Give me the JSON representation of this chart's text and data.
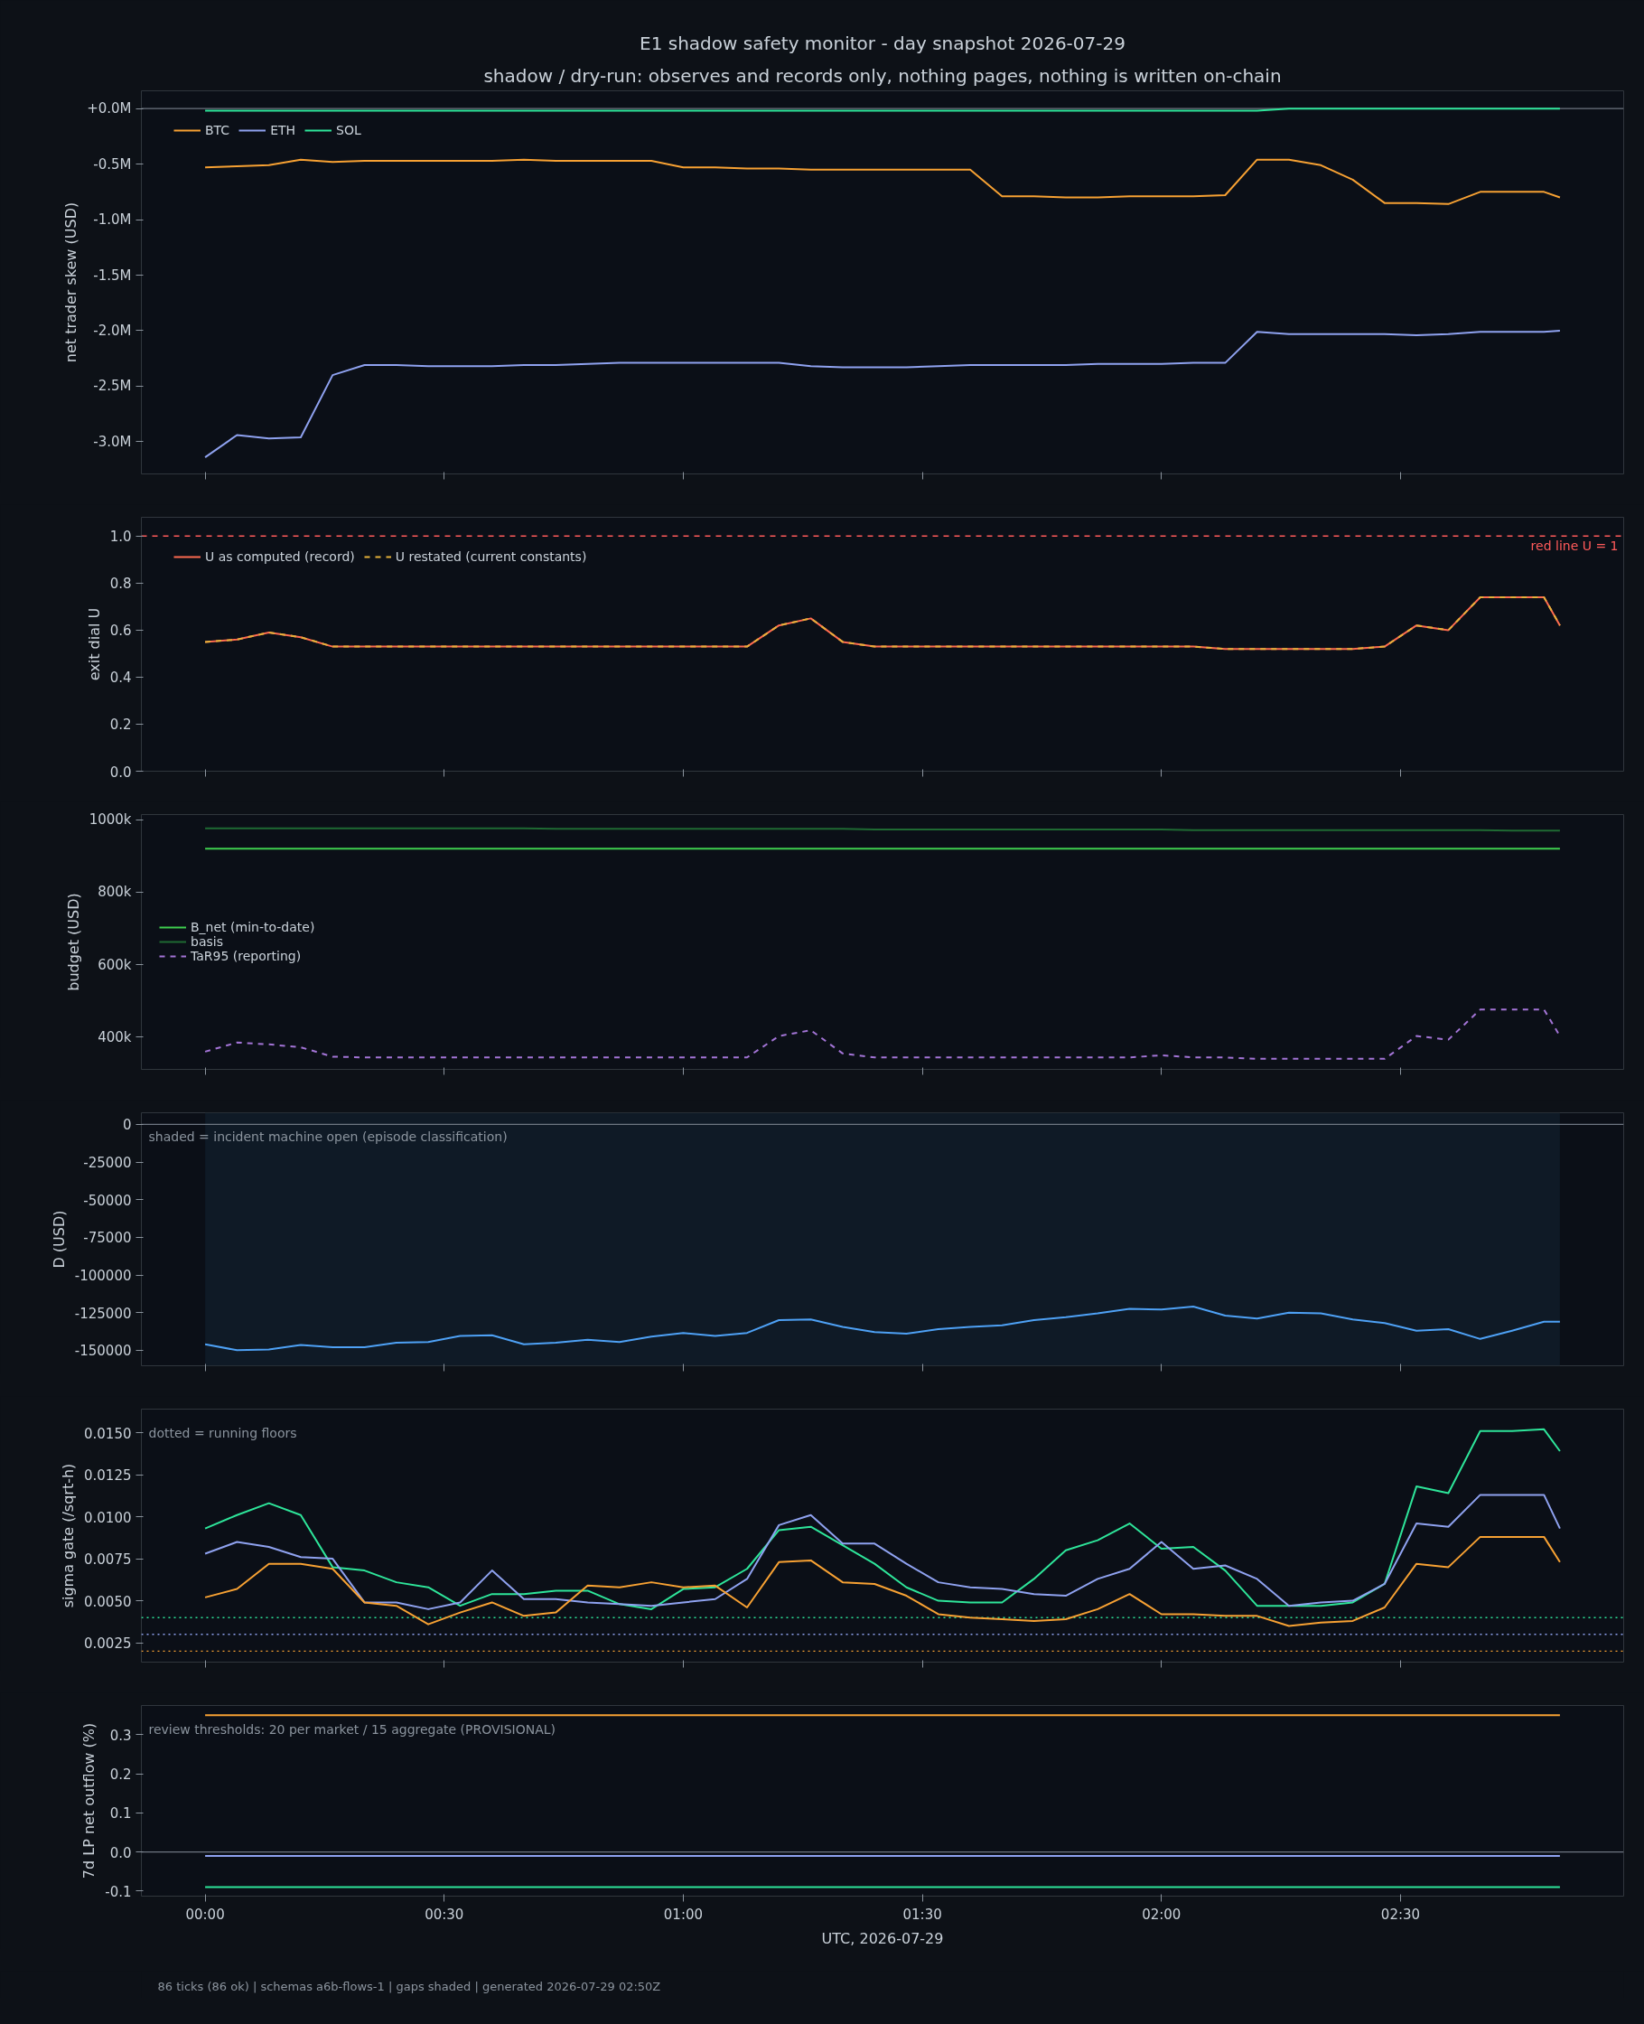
{
  "chart_data": [
    {
      "type": "line",
      "title": "E1 shadow safety monitor - day snapshot 2026-07-29",
      "subtitle": "shadow / dry-run: observes and records only, nothing pages, nothing is written on-chain",
      "ylabel": "net trader skew (USD)",
      "legend": "top left",
      "tick_labels": "y",
      "x": [
        "2026-07-29T00:00",
        "2026-07-29T00:04",
        "2026-07-29T00:08",
        "2026-07-29T00:12",
        "2026-07-29T00:16",
        "2026-07-29T00:20",
        "2026-07-29T00:24",
        "2026-07-29T00:28",
        "2026-07-29T00:32",
        "2026-07-29T00:36",
        "2026-07-29T00:40",
        "2026-07-29T00:44",
        "2026-07-29T00:48",
        "2026-07-29T00:52",
        "2026-07-29T00:56",
        "2026-07-29T01:00",
        "2026-07-29T01:04",
        "2026-07-29T01:08",
        "2026-07-29T01:12",
        "2026-07-29T01:16",
        "2026-07-29T01:20",
        "2026-07-29T01:24",
        "2026-07-29T01:28",
        "2026-07-29T01:32",
        "2026-07-29T01:36",
        "2026-07-29T01:40",
        "2026-07-29T01:44",
        "2026-07-29T01:48",
        "2026-07-29T01:52",
        "2026-07-29T01:56",
        "2026-07-29T02:00",
        "2026-07-29T02:04",
        "2026-07-29T02:08",
        "2026-07-29T02:12",
        "2026-07-29T02:16",
        "2026-07-29T02:20",
        "2026-07-29T02:24",
        "2026-07-29T02:28",
        "2026-07-29T02:32",
        "2026-07-29T02:36",
        "2026-07-29T02:40",
        "2026-07-29T02:44",
        "2026-07-29T02:48",
        "2026-07-29T02:50"
      ],
      "xlim": [
        "2026-07-28T23:52",
        "2026-07-29T02:58"
      ],
      "xticks": [
        {
          "value": "2026-07-29T00:00",
          "label": null
        },
        {
          "value": "2026-07-29T00:30",
          "label": null
        },
        {
          "value": "2026-07-29T01:00",
          "label": null
        },
        {
          "value": "2026-07-29T01:30",
          "label": null
        },
        {
          "value": "2026-07-29T02:00",
          "label": null
        },
        {
          "value": "2026-07-29T02:30",
          "label": null
        }
      ],
      "ylim": [
        -3290000,
        160000
      ],
      "yticks": [
        {
          "value": -3000000,
          "label": "-3.0M"
        },
        {
          "value": -2500000,
          "label": "-2.5M"
        },
        {
          "value": -2000000,
          "label": "-2.0M"
        },
        {
          "value": -1500000,
          "label": "-1.5M"
        },
        {
          "value": -1000000,
          "label": "-1.0M"
        },
        {
          "value": -500000,
          "label": "-0.5M"
        },
        {
          "value": 0,
          "label": "+0.0M"
        }
      ],
      "ref_lines": [
        {
          "axis": "y",
          "value": 0,
          "color": "#6e7681",
          "line_style": "solid"
        }
      ],
      "series": [
        {
          "name": "BTC",
          "color": "#f7a133",
          "values": [
            -530000,
            -520000,
            -510000,
            -460000,
            -480000,
            -470000,
            -470000,
            -470000,
            -470000,
            -470000,
            -460000,
            -470000,
            -470000,
            -470000,
            -470000,
            -530000,
            -530000,
            -540000,
            -540000,
            -550000,
            -550000,
            -550000,
            -550000,
            -550000,
            -550000,
            -790000,
            -790000,
            -800000,
            -800000,
            -790000,
            -790000,
            -790000,
            -780000,
            -460000,
            -460000,
            -510000,
            -640000,
            -850000,
            -850000,
            -860000,
            -750000,
            -750000,
            -750000,
            -800000
          ]
        },
        {
          "name": "ETH",
          "color": "#8fa2f0",
          "values": [
            -3140000,
            -2940000,
            -2970000,
            -2960000,
            -2400000,
            -2310000,
            -2310000,
            -2320000,
            -2320000,
            -2320000,
            -2310000,
            -2310000,
            -2300000,
            -2290000,
            -2290000,
            -2290000,
            -2290000,
            -2290000,
            -2290000,
            -2320000,
            -2330000,
            -2330000,
            -2330000,
            -2320000,
            -2310000,
            -2310000,
            -2310000,
            -2310000,
            -2300000,
            -2300000,
            -2300000,
            -2290000,
            -2290000,
            -2010000,
            -2030000,
            -2030000,
            -2030000,
            -2030000,
            -2040000,
            -2030000,
            -2010000,
            -2010000,
            -2010000,
            -2000000
          ]
        },
        {
          "name": "SOL",
          "color": "#2ee59a",
          "values": [
            -20000,
            -20000,
            -20000,
            -20000,
            -20000,
            -20000,
            -20000,
            -20000,
            -20000,
            -20000,
            -20000,
            -20000,
            -20000,
            -20000,
            -20000,
            -20000,
            -20000,
            -20000,
            -20000,
            -20000,
            -20000,
            -20000,
            -20000,
            -20000,
            -20000,
            -20000,
            -20000,
            -20000,
            -20000,
            -20000,
            -20000,
            -20000,
            -20000,
            -20000,
            0,
            0,
            0,
            0,
            0,
            0,
            0,
            0,
            0,
            0
          ]
        }
      ]
    },
    {
      "type": "line",
      "ylabel": "exit dial U",
      "legend": "top left",
      "tick_labels": "y",
      "x": [
        "2026-07-29T00:00",
        "2026-07-29T00:04",
        "2026-07-29T00:08",
        "2026-07-29T00:12",
        "2026-07-29T00:16",
        "2026-07-29T00:20",
        "2026-07-29T00:24",
        "2026-07-29T00:28",
        "2026-07-29T00:32",
        "2026-07-29T00:36",
        "2026-07-29T00:40",
        "2026-07-29T00:44",
        "2026-07-29T00:48",
        "2026-07-29T00:52",
        "2026-07-29T00:56",
        "2026-07-29T01:00",
        "2026-07-29T01:04",
        "2026-07-29T01:08",
        "2026-07-29T01:12",
        "2026-07-29T01:16",
        "2026-07-29T01:20",
        "2026-07-29T01:24",
        "2026-07-29T01:28",
        "2026-07-29T01:32",
        "2026-07-29T01:36",
        "2026-07-29T01:40",
        "2026-07-29T01:44",
        "2026-07-29T01:48",
        "2026-07-29T01:52",
        "2026-07-29T01:56",
        "2026-07-29T02:00",
        "2026-07-29T02:04",
        "2026-07-29T02:08",
        "2026-07-29T02:12",
        "2026-07-29T02:16",
        "2026-07-29T02:20",
        "2026-07-29T02:24",
        "2026-07-29T02:28",
        "2026-07-29T02:32",
        "2026-07-29T02:36",
        "2026-07-29T02:40",
        "2026-07-29T02:44",
        "2026-07-29T02:48",
        "2026-07-29T02:50"
      ],
      "xlim": [
        "2026-07-28T23:52",
        "2026-07-29T02:58"
      ],
      "xticks": [
        {
          "value": "2026-07-29T00:00",
          "label": null
        },
        {
          "value": "2026-07-29T00:30",
          "label": null
        },
        {
          "value": "2026-07-29T01:00",
          "label": null
        },
        {
          "value": "2026-07-29T01:30",
          "label": null
        },
        {
          "value": "2026-07-29T02:00",
          "label": null
        },
        {
          "value": "2026-07-29T02:30",
          "label": null
        }
      ],
      "ylim": [
        0,
        1.08
      ],
      "yticks": [
        {
          "value": 0,
          "label": "0.0"
        },
        0.2,
        0.4,
        0.6,
        0.8,
        {
          "value": 1,
          "label": "1.0"
        }
      ],
      "ref_lines": [
        {
          "axis": "y",
          "value": 1,
          "label": "red line U = 1",
          "color": "#ff5a5a",
          "line_style": "dashed"
        }
      ],
      "series": [
        {
          "name": "U as computed (record)",
          "color": "#ff6b50",
          "values": [
            0.55,
            0.56,
            0.59,
            0.57,
            0.53,
            0.53,
            0.53,
            0.53,
            0.53,
            0.53,
            0.53,
            0.53,
            0.53,
            0.53,
            0.53,
            0.53,
            0.53,
            0.53,
            0.62,
            0.65,
            0.55,
            0.53,
            0.53,
            0.53,
            0.53,
            0.53,
            0.53,
            0.53,
            0.53,
            0.53,
            0.53,
            0.53,
            0.52,
            0.52,
            0.52,
            0.52,
            0.52,
            0.53,
            0.62,
            0.6,
            0.74,
            0.74,
            0.74,
            0.62
          ]
        },
        {
          "name": "U restated (current constants)",
          "color": "#e6b13a",
          "line_style": "dashed",
          "values": [
            0.55,
            0.56,
            0.59,
            0.57,
            0.53,
            0.53,
            0.53,
            0.53,
            0.53,
            0.53,
            0.53,
            0.53,
            0.53,
            0.53,
            0.53,
            0.53,
            0.53,
            0.53,
            0.62,
            0.65,
            0.55,
            0.53,
            0.53,
            0.53,
            0.53,
            0.53,
            0.53,
            0.53,
            0.53,
            0.53,
            0.53,
            0.53,
            0.52,
            0.52,
            0.52,
            0.52,
            0.52,
            0.53,
            0.62,
            0.6,
            0.74,
            0.74,
            0.74,
            0.62
          ]
        }
      ]
    },
    {
      "type": "line",
      "ylabel": "budget (USD)",
      "legend": "left",
      "tick_labels": "y",
      "x": [
        "2026-07-29T00:00",
        "2026-07-29T00:04",
        "2026-07-29T00:08",
        "2026-07-29T00:12",
        "2026-07-29T00:16",
        "2026-07-29T00:20",
        "2026-07-29T00:24",
        "2026-07-29T00:28",
        "2026-07-29T00:32",
        "2026-07-29T00:36",
        "2026-07-29T00:40",
        "2026-07-29T00:44",
        "2026-07-29T00:48",
        "2026-07-29T00:52",
        "2026-07-29T00:56",
        "2026-07-29T01:00",
        "2026-07-29T01:04",
        "2026-07-29T01:08",
        "2026-07-29T01:12",
        "2026-07-29T01:16",
        "2026-07-29T01:20",
        "2026-07-29T01:24",
        "2026-07-29T01:28",
        "2026-07-29T01:32",
        "2026-07-29T01:36",
        "2026-07-29T01:40",
        "2026-07-29T01:44",
        "2026-07-29T01:48",
        "2026-07-29T01:52",
        "2026-07-29T01:56",
        "2026-07-29T02:00",
        "2026-07-29T02:04",
        "2026-07-29T02:08",
        "2026-07-29T02:12",
        "2026-07-29T02:16",
        "2026-07-29T02:20",
        "2026-07-29T02:24",
        "2026-07-29T02:28",
        "2026-07-29T02:32",
        "2026-07-29T02:36",
        "2026-07-29T02:40",
        "2026-07-29T02:44",
        "2026-07-29T02:48",
        "2026-07-29T02:50"
      ],
      "xlim": [
        "2026-07-28T23:52",
        "2026-07-29T02:58"
      ],
      "xticks": [
        {
          "value": "2026-07-29T00:00",
          "label": null
        },
        {
          "value": "2026-07-29T00:30",
          "label": null
        },
        {
          "value": "2026-07-29T01:00",
          "label": null
        },
        {
          "value": "2026-07-29T01:30",
          "label": null
        },
        {
          "value": "2026-07-29T02:00",
          "label": null
        },
        {
          "value": "2026-07-29T02:30",
          "label": null
        }
      ],
      "ylim": [
        311000,
        1014000
      ],
      "yticks": [
        {
          "value": 400000,
          "label": "400k"
        },
        {
          "value": 600000,
          "label": "600k"
        },
        {
          "value": 800000,
          "label": "800k"
        },
        {
          "value": 1000000,
          "label": "1000k"
        }
      ],
      "series": [
        {
          "name": "B_net (min-to-date)",
          "color": "#3fcf4f",
          "x": [
            "2026-07-29T00:00",
            "2026-07-29T02:50"
          ],
          "values": [
            920000,
            920000
          ]
        },
        {
          "name": "basis",
          "color": "#1f6a33",
          "values": [
            976000,
            976000,
            976000,
            976000,
            976000,
            976000,
            976000,
            976000,
            976000,
            976000,
            976000,
            975000,
            975000,
            975000,
            975000,
            975000,
            975000,
            975000,
            975000,
            975000,
            975000,
            973000,
            973000,
            973000,
            973000,
            973000,
            973000,
            973000,
            973000,
            973000,
            973000,
            971000,
            971000,
            971000,
            971000,
            971000,
            971000,
            971000,
            971000,
            971000,
            971000,
            970000,
            970000,
            970000
          ]
        },
        {
          "name": "TaR95 (reporting)",
          "color": "#a374d6",
          "line_style": "dashed",
          "values": [
            360000,
            385000,
            380000,
            372000,
            346000,
            344000,
            344000,
            344000,
            344000,
            344000,
            344000,
            344000,
            344000,
            344000,
            344000,
            344000,
            344000,
            344000,
            403000,
            419000,
            355000,
            344000,
            344000,
            344000,
            344000,
            344000,
            344000,
            344000,
            344000,
            344000,
            350000,
            344000,
            344000,
            340000,
            340000,
            340000,
            340000,
            340000,
            403000,
            393000,
            476000,
            476000,
            476000,
            403000
          ]
        }
      ]
    },
    {
      "type": "line",
      "ylabel": "D (USD)",
      "tick_labels": "y",
      "x": [
        "2026-07-29T00:00",
        "2026-07-29T00:04",
        "2026-07-29T00:08",
        "2026-07-29T00:12",
        "2026-07-29T00:16",
        "2026-07-29T00:20",
        "2026-07-29T00:24",
        "2026-07-29T00:28",
        "2026-07-29T00:32",
        "2026-07-29T00:36",
        "2026-07-29T00:40",
        "2026-07-29T00:44",
        "2026-07-29T00:48",
        "2026-07-29T00:52",
        "2026-07-29T00:56",
        "2026-07-29T01:00",
        "2026-07-29T01:04",
        "2026-07-29T01:08",
        "2026-07-29T01:12",
        "2026-07-29T01:16",
        "2026-07-29T01:20",
        "2026-07-29T01:24",
        "2026-07-29T01:28",
        "2026-07-29T01:32",
        "2026-07-29T01:36",
        "2026-07-29T01:40",
        "2026-07-29T01:44",
        "2026-07-29T01:48",
        "2026-07-29T01:52",
        "2026-07-29T01:56",
        "2026-07-29T02:00",
        "2026-07-29T02:04",
        "2026-07-29T02:08",
        "2026-07-29T02:12",
        "2026-07-29T02:16",
        "2026-07-29T02:20",
        "2026-07-29T02:24",
        "2026-07-29T02:28",
        "2026-07-29T02:32",
        "2026-07-29T02:36",
        "2026-07-29T02:40",
        "2026-07-29T02:44",
        "2026-07-29T02:48",
        "2026-07-29T02:50"
      ],
      "xlim": [
        "2026-07-28T23:52",
        "2026-07-29T02:58"
      ],
      "xticks": [
        {
          "value": "2026-07-29T00:00",
          "label": null
        },
        {
          "value": "2026-07-29T00:30",
          "label": null
        },
        {
          "value": "2026-07-29T01:00",
          "label": null
        },
        {
          "value": "2026-07-29T01:30",
          "label": null
        },
        {
          "value": "2026-07-29T02:00",
          "label": null
        },
        {
          "value": "2026-07-29T02:30",
          "label": null
        }
      ],
      "ylim": [
        -160300,
        7700
      ],
      "yticks": [
        -150000,
        -125000,
        -100000,
        -75000,
        -50000,
        -25000,
        0
      ],
      "ref_lines": [
        {
          "axis": "y",
          "value": 0,
          "color": "#6e7681",
          "line_style": "solid"
        }
      ],
      "bands": [
        {
          "axis": "x",
          "from": "2026-07-29T00:00",
          "to": "2026-07-29T02:50",
          "label": "shaded = incident machine open (episode classification)",
          "color": "#0f1a26"
        }
      ],
      "series": [
        {
          "color": "#4ea1f5",
          "values": [
            -146000,
            -150000,
            -149500,
            -146500,
            -148000,
            -148000,
            -145000,
            -144500,
            -140500,
            -140000,
            -146000,
            -145000,
            -143000,
            -144500,
            -141000,
            -138500,
            -140500,
            -138500,
            -130000,
            -129500,
            -134500,
            -138000,
            -139000,
            -136000,
            -134500,
            -133500,
            -130000,
            -128000,
            -125500,
            -122500,
            -123000,
            -121000,
            -127000,
            -129000,
            -125000,
            -125500,
            -129500,
            -132000,
            -137000,
            -136000,
            -142500,
            -137000,
            -131000,
            -131000
          ]
        }
      ]
    },
    {
      "type": "line",
      "ylabel": "sigma gate (/sqrt-h)",
      "tick_labels": "y",
      "annotations": [
        "dotted = running floors"
      ],
      "x": [
        "2026-07-29T00:00",
        "2026-07-29T00:04",
        "2026-07-29T00:08",
        "2026-07-29T00:12",
        "2026-07-29T00:16",
        "2026-07-29T00:20",
        "2026-07-29T00:24",
        "2026-07-29T00:28",
        "2026-07-29T00:32",
        "2026-07-29T00:36",
        "2026-07-29T00:40",
        "2026-07-29T00:44",
        "2026-07-29T00:48",
        "2026-07-29T00:52",
        "2026-07-29T00:56",
        "2026-07-29T01:00",
        "2026-07-29T01:04",
        "2026-07-29T01:08",
        "2026-07-29T01:12",
        "2026-07-29T01:16",
        "2026-07-29T01:20",
        "2026-07-29T01:24",
        "2026-07-29T01:28",
        "2026-07-29T01:32",
        "2026-07-29T01:36",
        "2026-07-29T01:40",
        "2026-07-29T01:44",
        "2026-07-29T01:48",
        "2026-07-29T01:52",
        "2026-07-29T01:56",
        "2026-07-29T02:00",
        "2026-07-29T02:04",
        "2026-07-29T02:08",
        "2026-07-29T02:12",
        "2026-07-29T02:16",
        "2026-07-29T02:20",
        "2026-07-29T02:24",
        "2026-07-29T02:28",
        "2026-07-29T02:32",
        "2026-07-29T02:36",
        "2026-07-29T02:40",
        "2026-07-29T02:44",
        "2026-07-29T02:48",
        "2026-07-29T02:50"
      ],
      "xlim": [
        "2026-07-28T23:52",
        "2026-07-29T02:58"
      ],
      "xticks": [
        {
          "value": "2026-07-29T00:00",
          "label": null
        },
        {
          "value": "2026-07-29T00:30",
          "label": null
        },
        {
          "value": "2026-07-29T01:00",
          "label": null
        },
        {
          "value": "2026-07-29T01:30",
          "label": null
        },
        {
          "value": "2026-07-29T02:00",
          "label": null
        },
        {
          "value": "2026-07-29T02:30",
          "label": null
        }
      ],
      "ylim": [
        0.00135,
        0.0164
      ],
      "yticks": [
        0.0025,
        {
          "value": 0.005,
          "label": "0.0050"
        },
        0.0075,
        {
          "value": 0.01,
          "label": "0.0100"
        },
        0.0125,
        {
          "value": 0.015,
          "label": "0.0150"
        }
      ],
      "ref_lines": [
        {
          "axis": "y",
          "value": 0.004,
          "color": "#2ee59a",
          "line_style": "dotted"
        },
        {
          "axis": "y",
          "value": 0.003,
          "color": "#8fa2f0",
          "line_style": "dotted"
        },
        {
          "axis": "y",
          "value": 0.002,
          "color": "#f7a133",
          "line_style": "dotted"
        }
      ],
      "series": [
        {
          "color": "#2ee59a",
          "values": [
            0.0093,
            0.0101,
            0.0108,
            0.0101,
            0.007,
            0.0068,
            0.0061,
            0.0058,
            0.0047,
            0.0054,
            0.0054,
            0.0056,
            0.0056,
            0.0048,
            0.0045,
            0.0057,
            0.0058,
            0.0069,
            0.0092,
            0.0094,
            0.0083,
            0.0072,
            0.0058,
            0.005,
            0.0049,
            0.0049,
            0.0063,
            0.008,
            0.0086,
            0.0096,
            0.0081,
            0.0082,
            0.0068,
            0.0047,
            0.0047,
            0.0047,
            0.0049,
            0.006,
            0.0118,
            0.0114,
            0.0151,
            0.0151,
            0.0152,
            0.0139
          ]
        },
        {
          "color": "#8fa2f0",
          "values": [
            0.0078,
            0.0085,
            0.0082,
            0.0076,
            0.0075,
            0.0049,
            0.0049,
            0.0045,
            0.0049,
            0.0068,
            0.0051,
            0.0051,
            0.0049,
            0.0048,
            0.0047,
            0.0049,
            0.0051,
            0.0063,
            0.0095,
            0.0101,
            0.0084,
            0.0084,
            0.0072,
            0.0061,
            0.0058,
            0.0057,
            0.0054,
            0.0053,
            0.0063,
            0.0069,
            0.0085,
            0.0069,
            0.0071,
            0.0063,
            0.0047,
            0.0049,
            0.005,
            0.006,
            0.0096,
            0.0094,
            0.0113,
            0.0113,
            0.0113,
            0.0093
          ]
        },
        {
          "color": "#f7a133",
          "values": [
            0.0052,
            0.0057,
            0.0072,
            0.0072,
            0.0069,
            0.0049,
            0.0047,
            0.0036,
            0.0043,
            0.0049,
            0.0041,
            0.0043,
            0.0059,
            0.0058,
            0.0061,
            0.0058,
            0.0059,
            0.0046,
            0.0073,
            0.0074,
            0.0061,
            0.006,
            0.0053,
            0.0042,
            0.004,
            0.0039,
            0.0038,
            0.0039,
            0.0045,
            0.0054,
            0.0042,
            0.0042,
            0.0041,
            0.0041,
            0.0035,
            0.0037,
            0.0038,
            0.0046,
            0.0072,
            0.007,
            0.0088,
            0.0088,
            0.0088,
            0.0073
          ]
        }
      ]
    },
    {
      "type": "line",
      "ylabel": "7d LP net outflow (%)",
      "xlabel": "UTC, 2026-07-29",
      "annotations": [
        "review thresholds: 20 per market / 15 aggregate (PROVISIONAL)"
      ],
      "xlim": [
        "2026-07-28T23:52",
        "2026-07-29T02:58"
      ],
      "xticks": [
        {
          "value": "2026-07-29T00:00",
          "label": "00:00"
        },
        {
          "value": "2026-07-29T00:30",
          "label": "00:30"
        },
        {
          "value": "2026-07-29T01:00",
          "label": "01:00"
        },
        {
          "value": "2026-07-29T01:30",
          "label": "01:30"
        },
        {
          "value": "2026-07-29T02:00",
          "label": "02:00"
        },
        {
          "value": "2026-07-29T02:30",
          "label": "02:30"
        }
      ],
      "ylim": [
        -0.113,
        0.375
      ],
      "yticks": [
        -0.1,
        {
          "value": 0,
          "label": "0.0"
        },
        0.1,
        0.2,
        0.3
      ],
      "ref_lines": [
        {
          "axis": "y",
          "value": 0,
          "color": "#6e7681",
          "line_style": "solid"
        }
      ],
      "series": [
        {
          "color": "#f7a133",
          "x": [
            "2026-07-29T00:00",
            "2026-07-29T02:50"
          ],
          "values": [
            0.35,
            0.35
          ]
        },
        {
          "color": "#8fa2f0",
          "x": [
            "2026-07-29T00:00",
            "2026-07-29T02:50"
          ],
          "values": [
            -0.01,
            -0.01
          ]
        },
        {
          "color": "#2ee59a",
          "x": [
            "2026-07-29T00:00",
            "2026-07-29T02:50"
          ],
          "values": [
            -0.09,
            -0.09
          ]
        }
      ]
    },
    {
      "type": "other",
      "annotations": [
        "86 ticks (86 ok) | schemas a6b-flows-1 | gaps shaded | generated 2026-07-29 02:50Z"
      ]
    }
  ]
}
